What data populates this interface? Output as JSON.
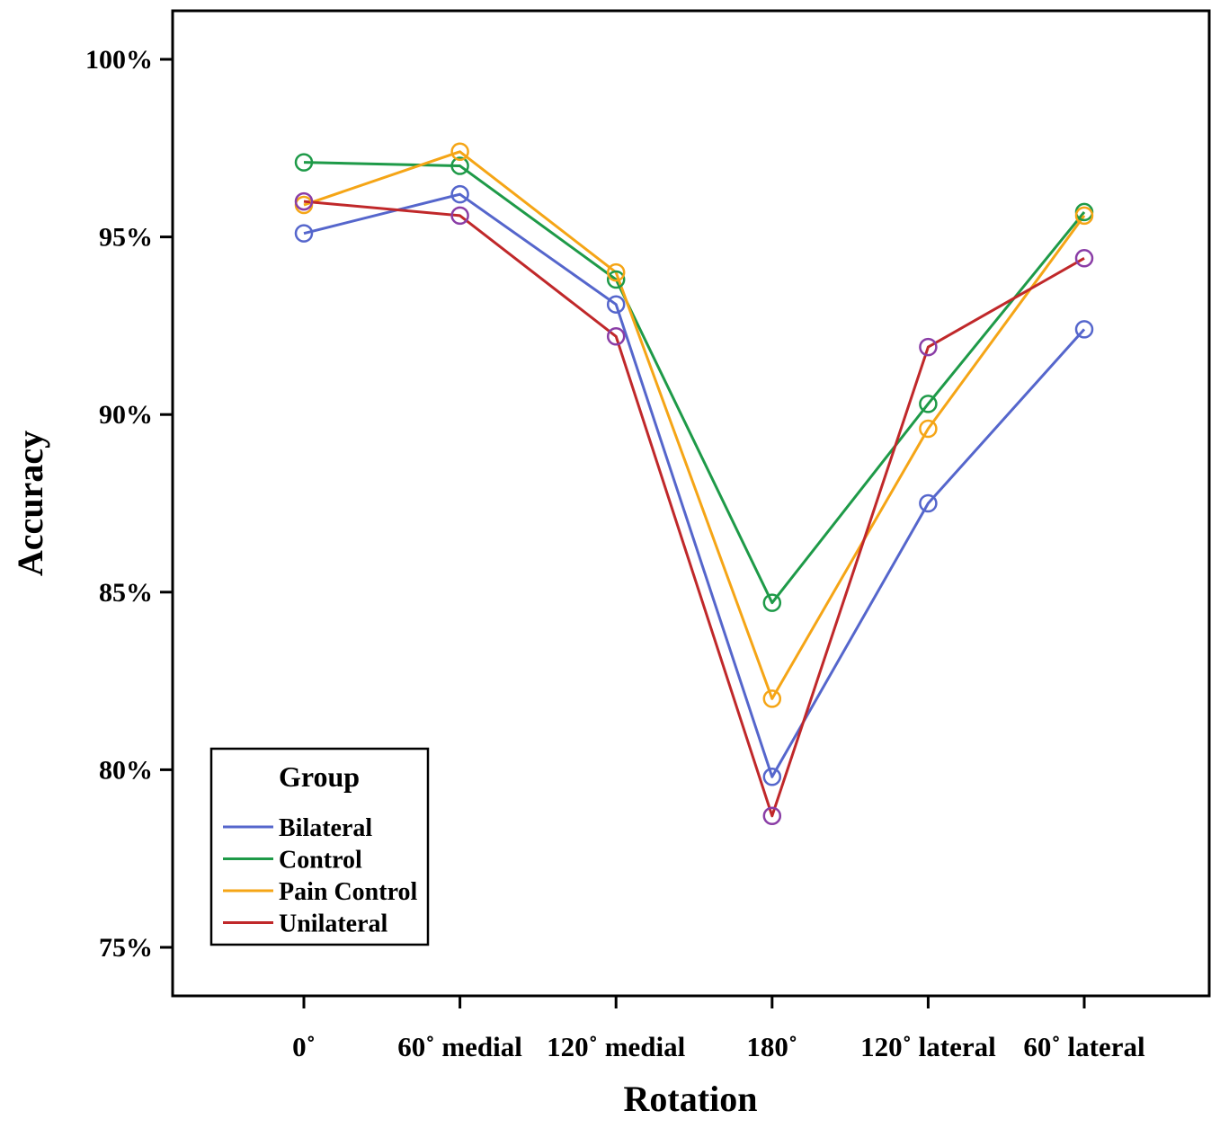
{
  "chart_data": {
    "type": "line",
    "title": "",
    "xlabel": "Rotation",
    "ylabel": "Accuracy",
    "categories": [
      "0˚",
      "60˚ medial",
      "120˚ medial",
      "180˚",
      "120˚ lateral",
      "60˚ lateral"
    ],
    "yticks": [
      "75%",
      "80%",
      "85%",
      "90%",
      "95%",
      "100%"
    ],
    "ylim": [
      0.75,
      1.0
    ],
    "grid": false,
    "legend": {
      "title": "Group",
      "position": "bottom-left"
    },
    "series": [
      {
        "name": "Bilateral",
        "color": "#5566cc",
        "values": [
          0.951,
          0.962,
          0.931,
          0.798,
          0.875,
          0.924
        ]
      },
      {
        "name": "Control",
        "color": "#1e9a48",
        "values": [
          0.971,
          0.97,
          0.938,
          0.847,
          0.903,
          0.957
        ]
      },
      {
        "name": "Pain Control",
        "color": "#f5a516",
        "values": [
          0.959,
          0.974,
          0.94,
          0.82,
          0.896,
          0.956
        ]
      },
      {
        "name": "Unilateral",
        "color": "#c0282a",
        "values": [
          0.96,
          0.956,
          0.922,
          0.787,
          0.919,
          0.944
        ]
      }
    ],
    "marker_colors": [
      "#5566cc",
      "#1e9a48",
      "#f5a516",
      "#8a3da6"
    ]
  }
}
